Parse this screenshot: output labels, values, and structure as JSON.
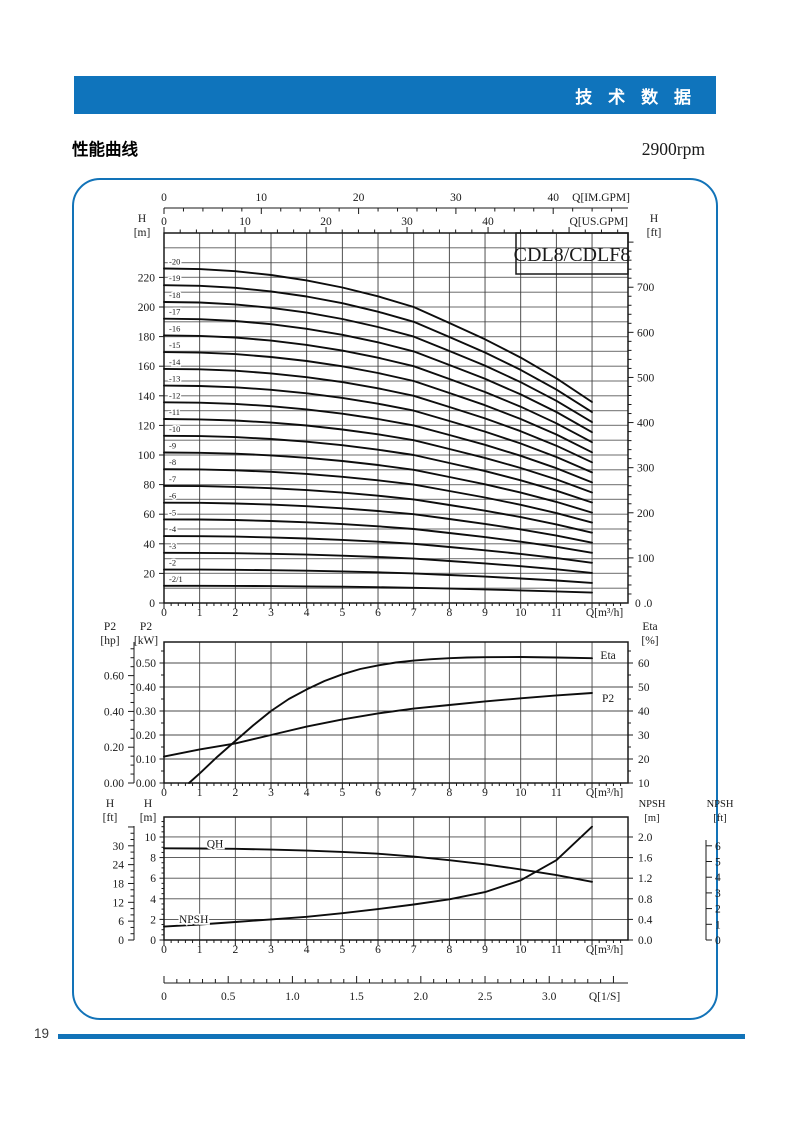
{
  "page": {
    "header_title": "技 术 数 据",
    "section_title": "性能曲线",
    "rpm_label": "2900rpm",
    "page_number": "19",
    "colors": {
      "accent": "#1273b8",
      "ink": "#1a1a1a",
      "grid": "#898989"
    }
  },
  "ls_axis": {
    "label": "Q[1/S]",
    "ticks": [
      "0",
      "0.5",
      "1.0",
      "1.5",
      "2.0",
      "2.5",
      "3.0"
    ],
    "values": [
      0,
      0.5,
      1,
      1.5,
      2,
      2.5,
      3
    ],
    "m3h_per_ls": 3.6,
    "minor_step": 0.1
  },
  "chart_data": [
    {
      "type": "line",
      "name": "hq-chart",
      "model_label": "CDL8/CDLF8",
      "x_unit_label": "Q[m³/h]",
      "x_ticks": [
        0,
        1,
        2,
        3,
        4,
        5,
        6,
        7,
        8,
        9,
        10,
        11
      ],
      "xlim": [
        0,
        13
      ],
      "x_grid_max": 12,
      "x_minor_step": 0.2,
      "im_gpm_axis": {
        "label": "Q[IM.GPM]",
        "ticks": [
          0,
          10,
          20,
          30,
          40
        ],
        "gpm_per_m3h": 3.666,
        "minor_step": 2
      },
      "us_gpm_axis": {
        "label": "Q[US.GPM]",
        "ticks": [
          0,
          10,
          20,
          30,
          40
        ],
        "gpm_per_m3h": 4.403,
        "minor_step": 2
      },
      "left_axis": {
        "title": [
          "H",
          "[m]"
        ],
        "ticks": [
          0,
          20,
          40,
          60,
          80,
          100,
          120,
          140,
          160,
          180,
          200,
          220
        ],
        "ylim": [
          0,
          250
        ],
        "grid_step": 10
      },
      "right_axis": {
        "title": [
          "H",
          "[ft]"
        ],
        "ticks": [
          100,
          200,
          300,
          400,
          500,
          600,
          700
        ],
        "bottom_label": "0 .0",
        "ft_per_m": 3.2808,
        "minor_step": 20
      },
      "stage_curves": {
        "q": [
          0,
          1,
          2,
          3,
          4,
          5,
          6,
          7,
          8,
          9,
          10,
          11,
          12
        ],
        "head_per_stage": [
          11.3,
          11.28,
          11.21,
          11.08,
          10.9,
          10.66,
          10.36,
          10.0,
          9.46,
          8.91,
          8.29,
          7.59,
          6.79
        ],
        "series": [
          {
            "label": "-20",
            "stages": 20
          },
          {
            "label": "-19",
            "stages": 19
          },
          {
            "label": "-18",
            "stages": 18
          },
          {
            "label": "-17",
            "stages": 17
          },
          {
            "label": "-16",
            "stages": 16
          },
          {
            "label": "-15",
            "stages": 15
          },
          {
            "label": "-14",
            "stages": 14
          },
          {
            "label": "-13",
            "stages": 13
          },
          {
            "label": "-12",
            "stages": 12
          },
          {
            "label": "-11",
            "stages": 11
          },
          {
            "label": "-10",
            "stages": 10
          },
          {
            "label": "-9",
            "stages": 9
          },
          {
            "label": "-8",
            "stages": 8
          },
          {
            "label": "-7",
            "stages": 7
          },
          {
            "label": "-6",
            "stages": 6
          },
          {
            "label": "-5",
            "stages": 5
          },
          {
            "label": "-4",
            "stages": 4
          },
          {
            "label": "-3",
            "stages": 3
          },
          {
            "label": "-2",
            "stages": 2
          },
          {
            "label": "-2/1",
            "stages": 1.03
          }
        ]
      }
    },
    {
      "type": "line",
      "name": "power-efficiency-chart",
      "x_unit_label": "Q[m³/h]",
      "x_ticks": [
        0,
        1,
        2,
        3,
        4,
        5,
        6,
        7,
        8,
        9,
        10,
        11
      ],
      "x_minor_step": 0.2,
      "kw_axis": {
        "title": [
          "P2",
          "[kW]"
        ],
        "ticks": [
          "0.50",
          "0.40",
          "0.30",
          "0.20",
          "0.10",
          "0.00"
        ],
        "values": [
          0.5,
          0.4,
          0.3,
          0.2,
          0.1,
          0
        ],
        "ylim_kw": [
          0,
          0.5875
        ],
        "grid_step": 0.1,
        "minor_step": 0.05
      },
      "hp_axis": {
        "title": [
          "P2",
          "[hp]"
        ],
        "ticks": [
          "0.60",
          "0.40",
          "0.20",
          "0.00"
        ],
        "values": [
          0.6,
          0.4,
          0.2,
          0
        ],
        "kw_per_hp": 0.7457,
        "minor_step": 0.05
      },
      "eta_axis": {
        "title": [
          "Eta",
          "[%]"
        ],
        "ticks": [
          60,
          50,
          40,
          30,
          20,
          10
        ],
        "eta_at_bottom": 10,
        "kw_per_pct": 0.01,
        "minor_step": 5
      },
      "series": [
        {
          "name": "Eta",
          "unit": "%",
          "label_pos": [
            12.45,
            0.533
          ],
          "points": [
            [
              0.7,
              10
            ],
            [
              1,
              14
            ],
            [
              1.5,
              21
            ],
            [
              2,
              27.5
            ],
            [
              2.5,
              34
            ],
            [
              3,
              40
            ],
            [
              3.5,
              45
            ],
            [
              4,
              49
            ],
            [
              4.5,
              52.5
            ],
            [
              5,
              55.3
            ],
            [
              5.5,
              57.5
            ],
            [
              6,
              59
            ],
            [
              6.5,
              60.2
            ],
            [
              7,
              61
            ],
            [
              7.5,
              61.6
            ],
            [
              8,
              62
            ],
            [
              8.5,
              62.3
            ],
            [
              9,
              62.4
            ],
            [
              10,
              62.5
            ],
            [
              11,
              62.3
            ],
            [
              12,
              62
            ]
          ]
        },
        {
          "name": "P2",
          "unit": "kW",
          "label_pos": [
            12.45,
            0.354
          ],
          "points": [
            [
              0,
              0.11
            ],
            [
              1,
              0.14
            ],
            [
              2,
              0.165
            ],
            [
              3,
              0.2
            ],
            [
              4,
              0.235
            ],
            [
              5,
              0.265
            ],
            [
              6,
              0.29
            ],
            [
              7,
              0.31
            ],
            [
              8,
              0.325
            ],
            [
              9,
              0.34
            ],
            [
              10,
              0.353
            ],
            [
              11,
              0.365
            ],
            [
              12,
              0.375
            ]
          ]
        }
      ]
    },
    {
      "type": "line",
      "name": "qh-npsh-chart",
      "x_unit_label": "Q[m³/h]",
      "x_ticks": [
        0,
        1,
        2,
        3,
        4,
        5,
        6,
        7,
        8,
        9,
        10,
        11
      ],
      "x_minor_step": 0.2,
      "m_axis": {
        "title": [
          "H",
          "[m]"
        ],
        "ticks": [
          0,
          2,
          4,
          6,
          8,
          10
        ],
        "ylim": [
          0,
          11.94
        ],
        "grid_step": 2,
        "minor_step": 0.5
      },
      "ft_axis": {
        "title": [
          "H",
          "[ft]"
        ],
        "ticks": [
          0,
          6,
          12,
          18,
          24,
          30
        ],
        "ft_per_m": 3.2808,
        "minor_step": 2
      },
      "npsh_m_axis": {
        "title": [
          "NPSH",
          "[m]"
        ],
        "ticks": [
          "0.0",
          "0.4",
          "0.8",
          "1.2",
          "1.6",
          "2.0"
        ],
        "values": [
          0,
          0.4,
          0.8,
          1.2,
          1.6,
          2.0
        ],
        "m_per_npsh_m": 5
      },
      "npsh_ft_axis": {
        "title": [
          "NPSH",
          "[ft]"
        ],
        "ticks": [
          0,
          1,
          2,
          3,
          4,
          5,
          6
        ],
        "m_per_npsh_ft": 1.524
      },
      "series": [
        {
          "name": "QH",
          "unit": "m",
          "label_pos": [
            1.43,
            9.35
          ],
          "label_anchor": "middle",
          "points": [
            [
              0,
              8.9
            ],
            [
              1,
              8.88
            ],
            [
              2,
              8.85
            ],
            [
              3,
              8.78
            ],
            [
              4,
              8.68
            ],
            [
              5,
              8.55
            ],
            [
              6,
              8.38
            ],
            [
              7,
              8.1
            ],
            [
              8,
              7.75
            ],
            [
              9,
              7.35
            ],
            [
              10,
              6.85
            ],
            [
              11,
              6.3
            ],
            [
              12,
              5.65
            ]
          ]
        },
        {
          "name": "NPSH",
          "unit": "npsh_m",
          "label_pos": [
            0.42,
            2.05
          ],
          "label_anchor": "start",
          "points": [
            [
              0,
              0.26
            ],
            [
              1,
              0.3
            ],
            [
              2,
              0.35
            ],
            [
              3,
              0.4
            ],
            [
              4,
              0.45
            ],
            [
              5,
              0.52
            ],
            [
              6,
              0.6
            ],
            [
              7,
              0.69
            ],
            [
              8,
              0.79
            ],
            [
              9,
              0.93
            ],
            [
              10,
              1.16
            ],
            [
              11,
              1.55
            ],
            [
              12,
              2.2
            ]
          ]
        }
      ]
    }
  ]
}
